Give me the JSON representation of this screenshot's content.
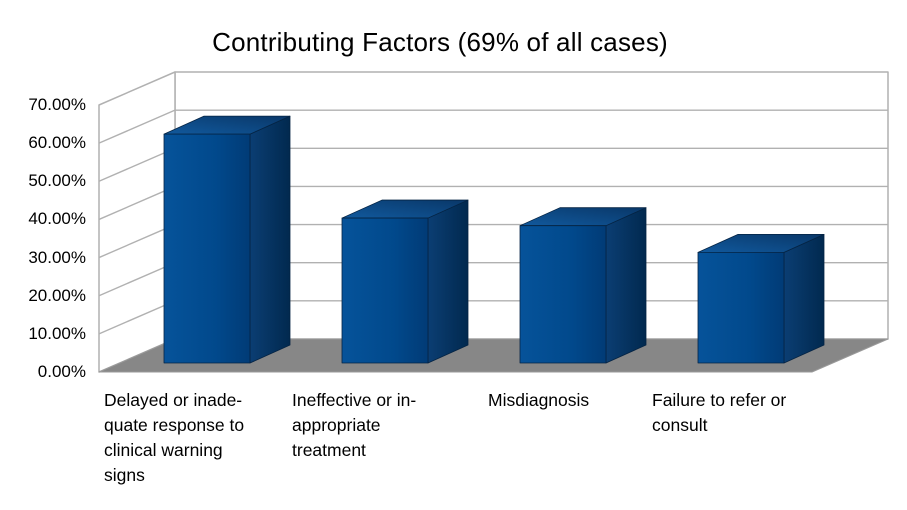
{
  "title": "Contributing Factors (69% of all cases)",
  "chart_data": {
    "type": "bar",
    "projection": "3d",
    "title": "Contributing Factors (69% of all cases)",
    "xlabel": "",
    "ylabel": "",
    "ylim": [
      0,
      70
    ],
    "ytick_step": 10,
    "grid": true,
    "legend": "none",
    "categories": [
      "Delayed or inadequate response to clinical warning signs",
      "Ineffective or inappropriate treatment",
      "Misdiagnosis",
      "Failure to refer or consult"
    ],
    "category_label_lines": [
      [
        "Delayed or inade-",
        "quate response to",
        "clinical warning",
        "signs"
      ],
      [
        "Ineffective or in-",
        "appropriate",
        "treatment"
      ],
      [
        "Misdiagnosis"
      ],
      [
        "Failure to refer or",
        "consult"
      ]
    ],
    "values": [
      60,
      38,
      36,
      29
    ],
    "ytick_labels": [
      "0.00%",
      "10.00%",
      "20.00%",
      "30.00%",
      "40.00%",
      "50.00%",
      "60.00%",
      "70.00%"
    ],
    "colors": {
      "bar_front_light": "#06539a",
      "bar_front": "#01498c",
      "bar_front_dark": "#013b76",
      "bar_side": "#0b3e73",
      "bar_side_dark": "#01294f",
      "bar_top": "#11599d",
      "bar_top_dark": "#093768",
      "bar_outline": "#052444",
      "floor": "#878787",
      "floor_edge": "#9a9a9a",
      "wall_fill": "#ffffff",
      "wall_line": "#b1b1b1",
      "background": "#ffffff",
      "text": "#000000"
    }
  }
}
